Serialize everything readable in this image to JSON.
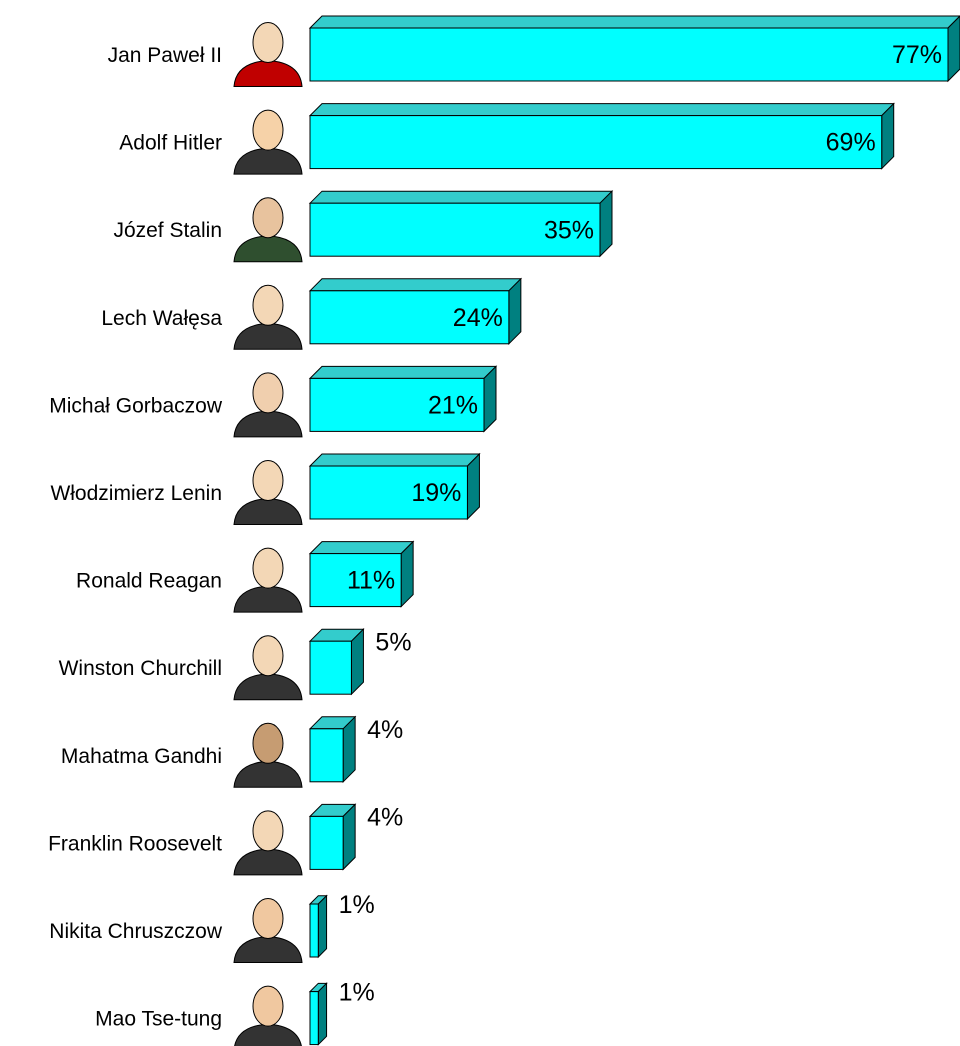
{
  "chart_data": {
    "type": "bar",
    "orientation": "horizontal",
    "categories": [
      "Jan Paweł II",
      "Adolf Hitler",
      "Józef Stalin",
      "Lech Wałęsa",
      "Michał Gorbaczow",
      "Włodzimierz Lenin",
      "Ronald Reagan",
      "Winston Churchill",
      "Mahatma Gandhi",
      "Franklin Roosevelt",
      "Nikita Chruszczow",
      "Mao Tse-tung"
    ],
    "values": [
      77,
      69,
      35,
      24,
      21,
      19,
      11,
      5,
      4,
      4,
      1,
      1
    ],
    "value_labels": [
      "77%",
      "69%",
      "35%",
      "24%",
      "21%",
      "19%",
      "11%",
      "5%",
      "4%",
      "4%",
      "1%",
      "1%"
    ],
    "color": "#00ffff"
  }
}
